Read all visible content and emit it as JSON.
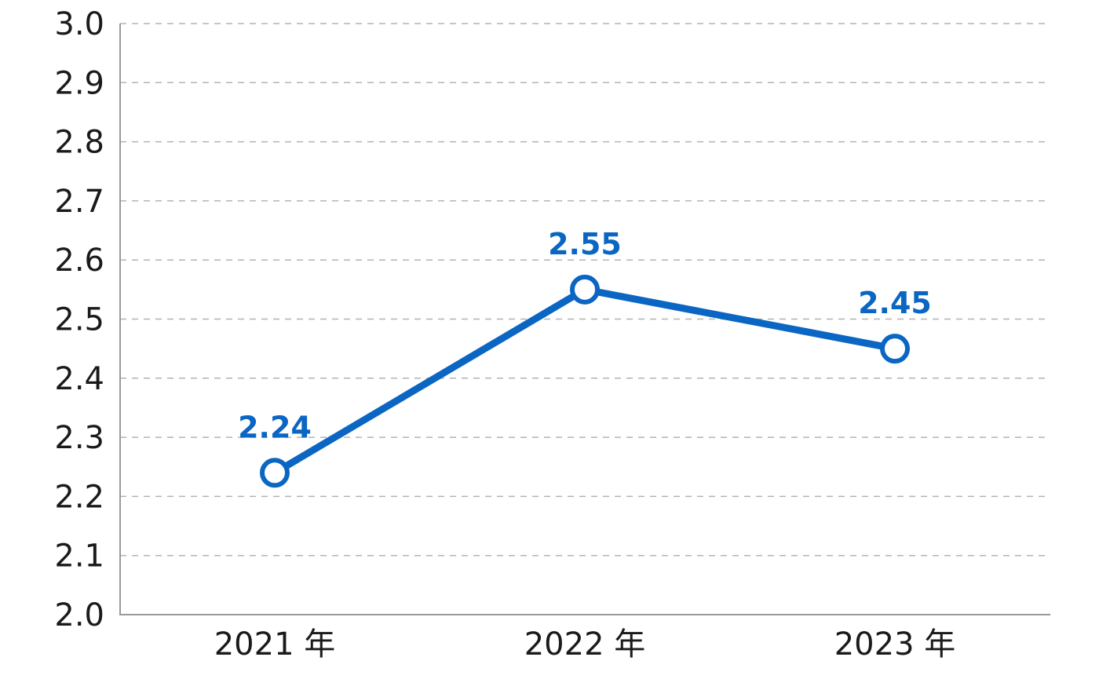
{
  "chart_data": {
    "type": "line",
    "categories": [
      "2021 年",
      "2022 年",
      "2023 年"
    ],
    "series": [
      {
        "values": [
          2.24,
          2.55,
          2.45
        ]
      }
    ],
    "data_labels": [
      "2.24",
      "2.55",
      "2.45"
    ],
    "y_ticks": [
      "2.0",
      "2.1",
      "2.2",
      "2.3",
      "2.4",
      "2.5",
      "2.6",
      "2.7",
      "2.8",
      "2.9",
      "3.0"
    ],
    "ylim": [
      2.0,
      3.0
    ],
    "title": "",
    "xlabel": "",
    "ylabel": "",
    "grid": "horizontal-dashed",
    "legend": "none",
    "colors": {
      "series": "#0a66c2",
      "grid": "#b3b3b3",
      "axis": "#999999",
      "text": "#1a1a1a"
    }
  }
}
